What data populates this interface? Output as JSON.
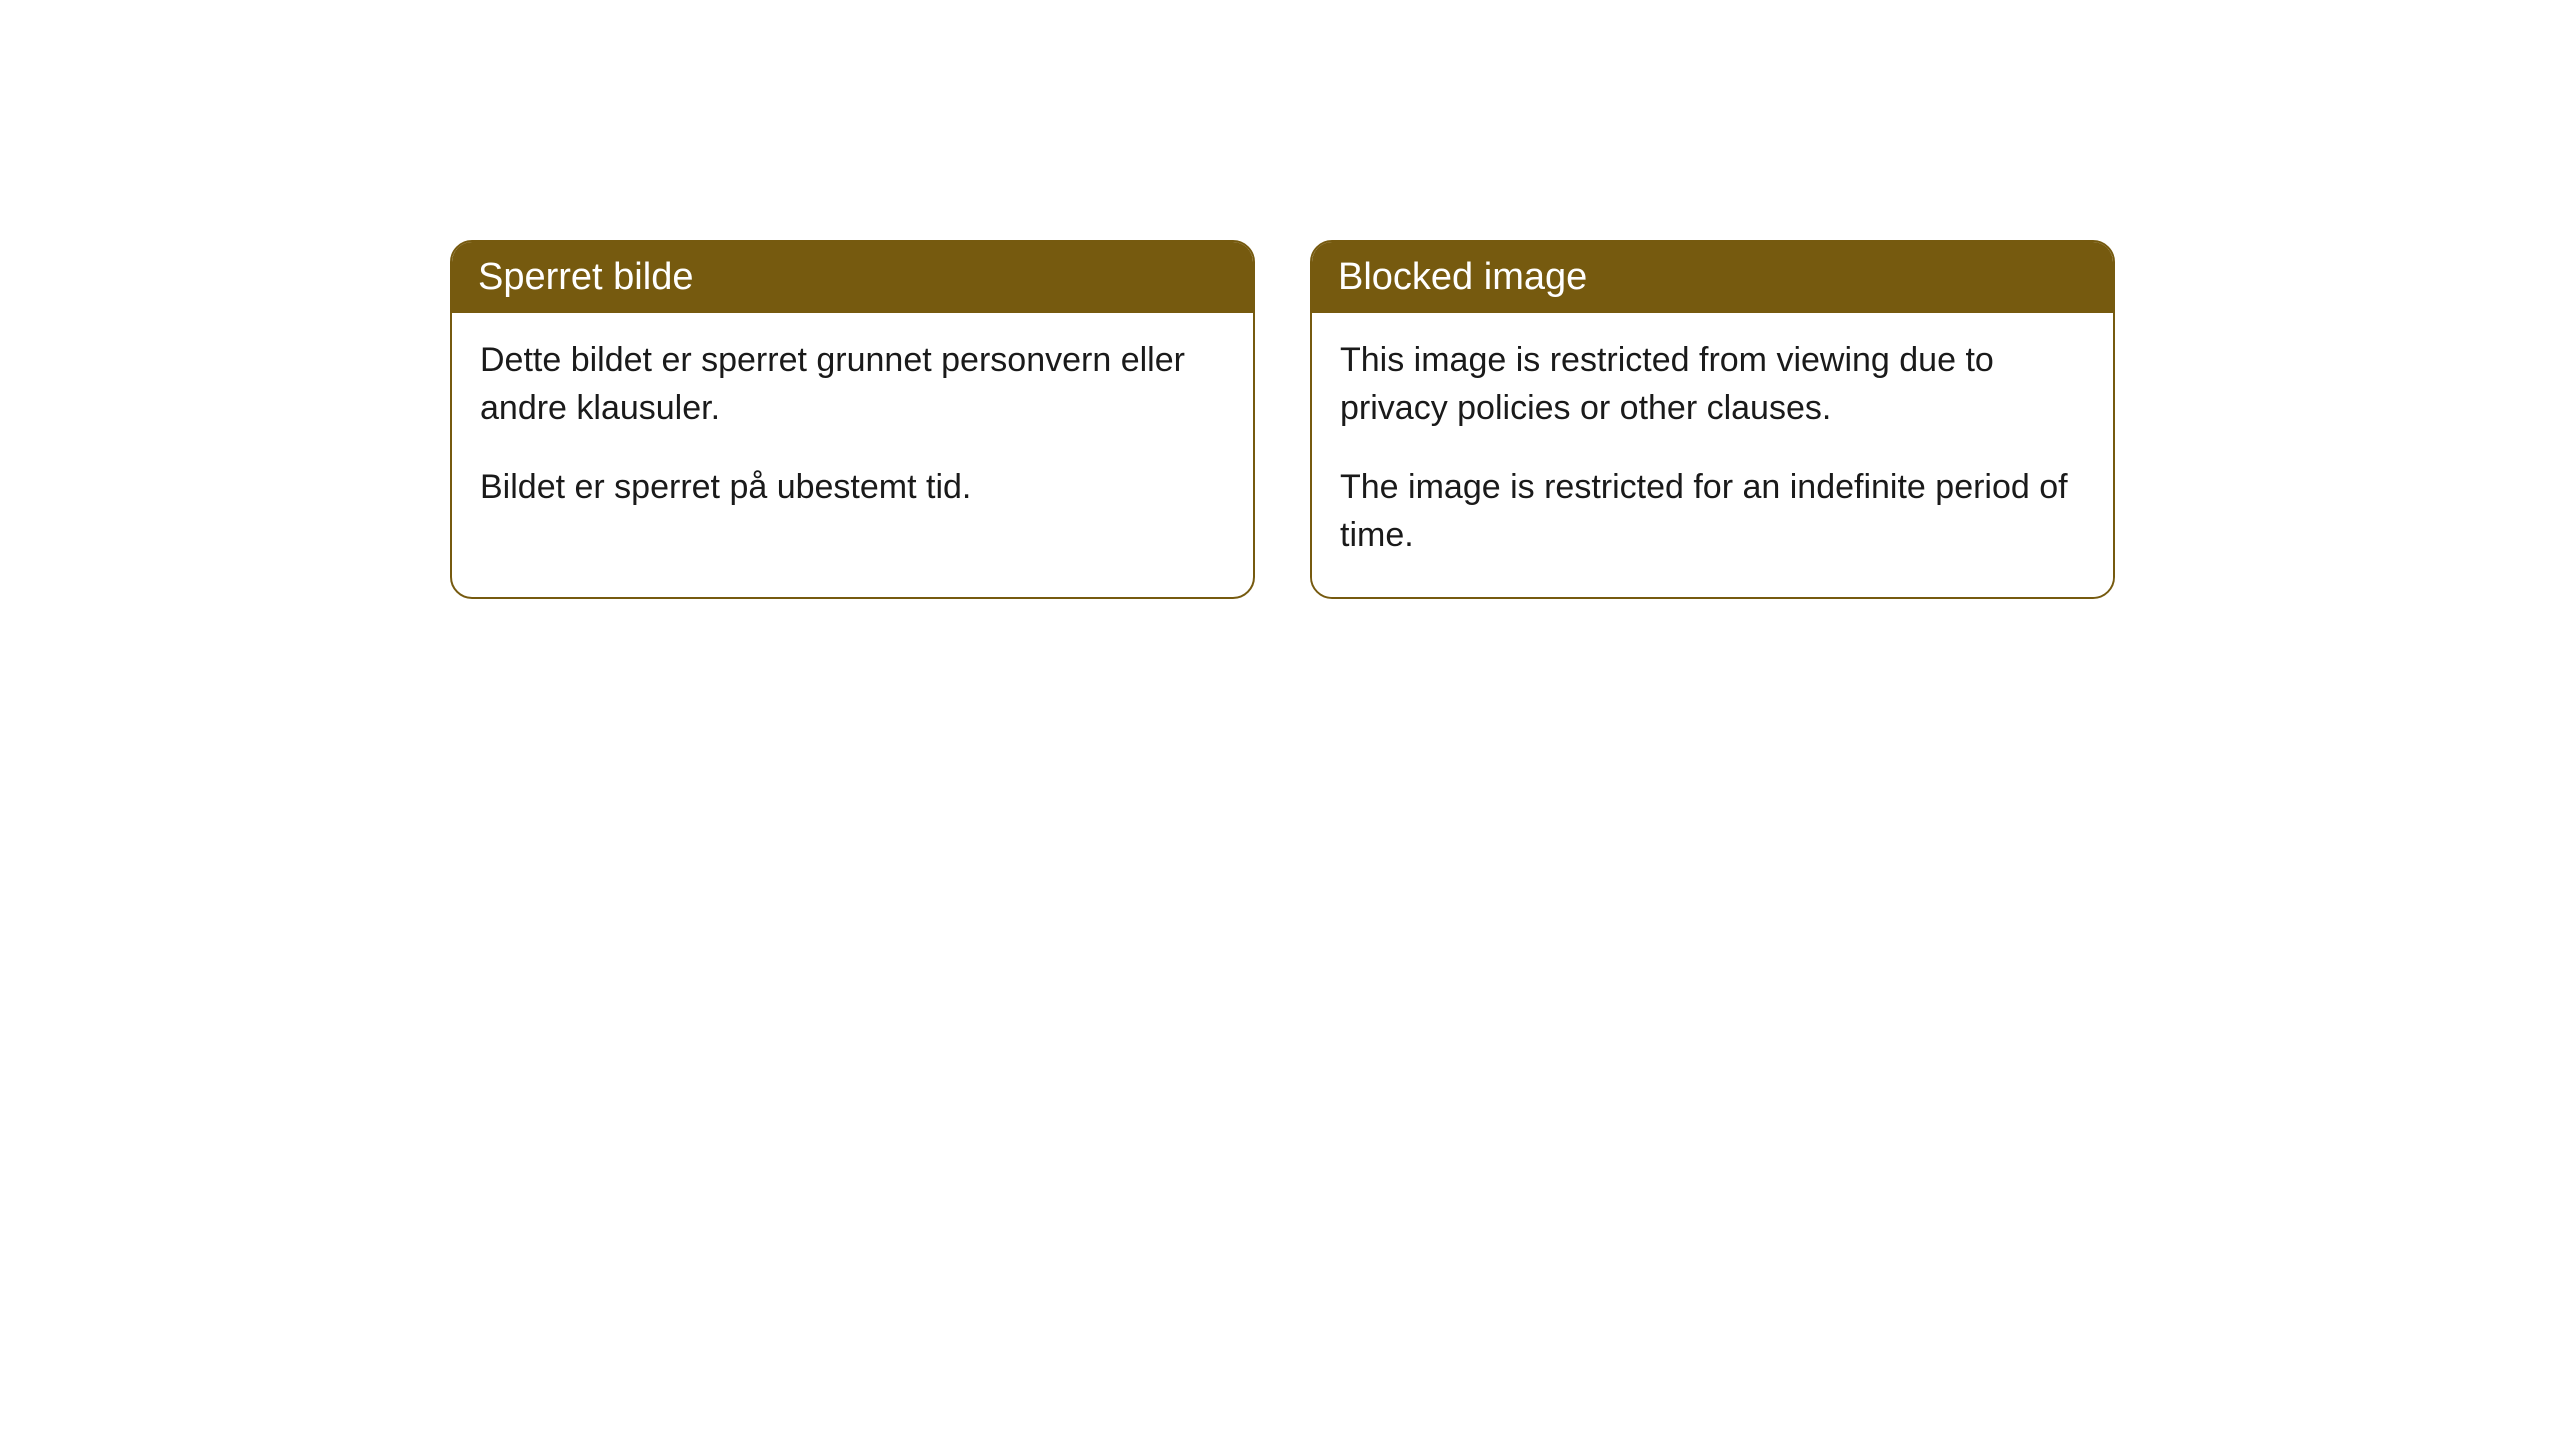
{
  "cards": [
    {
      "title": "Sperret bilde",
      "paragraph1": "Dette bildet er sperret grunnet personvern eller andre klausuler.",
      "paragraph2": "Bildet er sperret på ubestemt tid."
    },
    {
      "title": "Blocked image",
      "paragraph1": "This image is restricted from viewing due to privacy policies or other clauses.",
      "paragraph2": "The image is restricted for an indefinite period of time."
    }
  ],
  "styling": {
    "header_background": "#765a0f",
    "header_text_color": "#ffffff",
    "border_color": "#765a0f",
    "body_text_color": "#1a1a1a",
    "body_background": "#ffffff",
    "border_radius": 22,
    "title_fontsize": 38,
    "body_fontsize": 34
  }
}
